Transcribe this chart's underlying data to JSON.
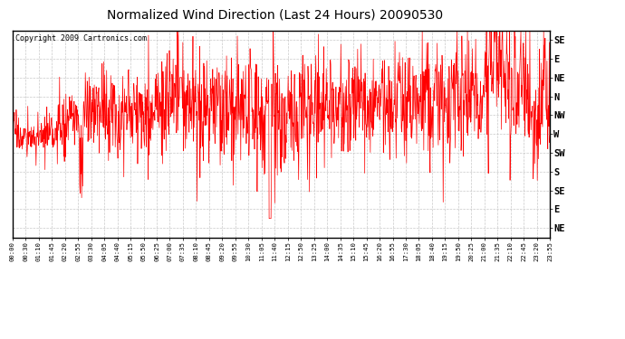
{
  "title": "Normalized Wind Direction (Last 24 Hours) 20090530",
  "copyright_text": "Copyright 2009 Cartronics.com",
  "background_color": "#ffffff",
  "plot_bg_color": "#ffffff",
  "line_color": "#ff0000",
  "grid_color": "#bbbbbb",
  "title_fontsize": 10,
  "ytick_labels_top_to_bottom": [
    "SE",
    "E",
    "NE",
    "N",
    "NW",
    "W",
    "SW",
    "S",
    "SE",
    "E",
    "NE"
  ],
  "ytick_values": [
    10,
    9,
    8,
    7,
    6,
    5,
    4,
    3,
    2,
    1,
    0
  ],
  "ylim": [
    -0.5,
    10.5
  ],
  "xtick_labels": [
    "00:00",
    "00:30",
    "01:10",
    "01:45",
    "02:20",
    "02:55",
    "03:30",
    "04:05",
    "04:40",
    "05:15",
    "05:50",
    "06:25",
    "07:00",
    "07:35",
    "08:10",
    "08:45",
    "09:20",
    "09:55",
    "10:30",
    "11:05",
    "11:40",
    "12:15",
    "12:50",
    "13:25",
    "14:00",
    "14:35",
    "15:10",
    "15:45",
    "16:20",
    "16:55",
    "17:30",
    "18:05",
    "18:40",
    "19:15",
    "19:50",
    "20:25",
    "21:00",
    "21:35",
    "22:10",
    "22:45",
    "23:20",
    "23:55"
  ],
  "n_points": 1440,
  "random_seed": 17
}
